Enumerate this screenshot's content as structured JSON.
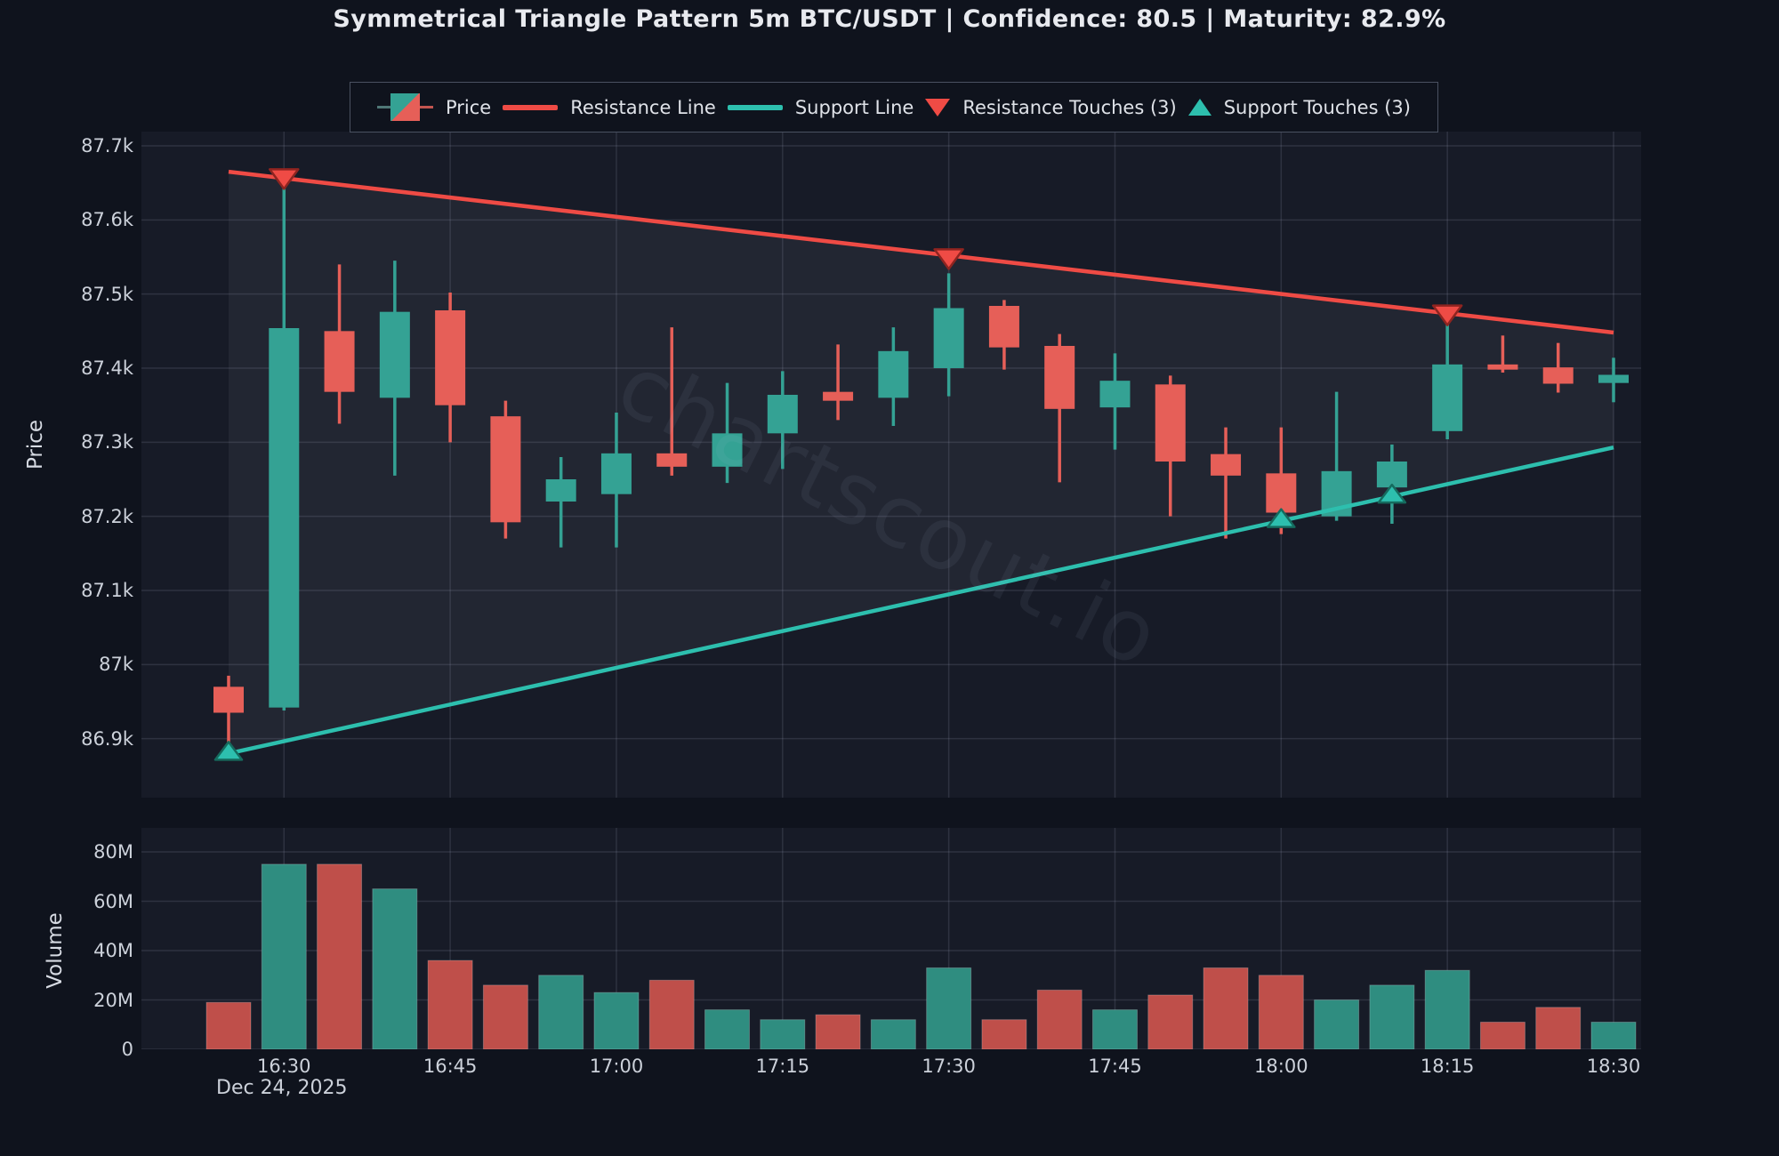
{
  "title": "Symmetrical Triangle Pattern 5m BTC/USDT | Confidence: 80.5 | Maturity: 82.9%",
  "watermark": "chartscout.io",
  "legend": {
    "items": [
      {
        "label": "Price",
        "glyph": "candle-glyph"
      },
      {
        "label": "Resistance Line",
        "glyph": "red-line"
      },
      {
        "label": "Support Line",
        "glyph": "teal-line"
      },
      {
        "label": "Resistance Touches (3)",
        "glyph": "red-down-triangle"
      },
      {
        "label": "Support Touches (3)",
        "glyph": "teal-up-triangle"
      }
    ]
  },
  "axes": {
    "price": {
      "label": "Price",
      "ticks": [
        {
          "value": 87700,
          "label": "87.7k"
        },
        {
          "value": 87600,
          "label": "87.6k"
        },
        {
          "value": 87500,
          "label": "87.5k"
        },
        {
          "value": 87400,
          "label": "87.4k"
        },
        {
          "value": 87300,
          "label": "87.3k"
        },
        {
          "value": 87200,
          "label": "87.2k"
        },
        {
          "value": 87100,
          "label": "87.1k"
        },
        {
          "value": 87000,
          "label": "87k"
        },
        {
          "value": 86900,
          "label": "86.9k"
        }
      ]
    },
    "volume": {
      "label": "Volume",
      "ticks": [
        {
          "value": 0,
          "label": "0"
        },
        {
          "value": 20,
          "label": "20M"
        },
        {
          "value": 40,
          "label": "40M"
        },
        {
          "value": 60,
          "label": "60M"
        },
        {
          "value": 80,
          "label": "80M"
        }
      ]
    },
    "time": {
      "tick_labels": [
        "16:30",
        "16:45",
        "17:00",
        "17:15",
        "17:30",
        "17:45",
        "18:00",
        "18:15",
        "18:30"
      ],
      "date_label": "Dec 24, 2025"
    }
  },
  "chart_data": {
    "type": "candlestick",
    "title": "Symmetrical Triangle Pattern 5m BTC/USDT | Confidence: 80.5 | Maturity: 82.9%",
    "xlabel": "",
    "ylabel_top": "Price",
    "ylabel_bottom": "Volume",
    "price_ylim": [
      86820,
      87715
    ],
    "volume_ylim_m": [
      0,
      90
    ],
    "grid": true,
    "legend_position": "top-center",
    "times": [
      "16:25",
      "16:30",
      "16:35",
      "16:40",
      "16:45",
      "16:50",
      "16:55",
      "17:00",
      "17:05",
      "17:10",
      "17:15",
      "17:20",
      "17:25",
      "17:30",
      "17:35",
      "17:40",
      "17:45",
      "17:50",
      "17:55",
      "18:00",
      "18:05",
      "18:10",
      "18:15",
      "18:20",
      "18:25",
      "18:30"
    ],
    "ohlc": [
      [
        86970,
        86985,
        86885,
        86935
      ],
      [
        86942,
        87660,
        86938,
        87454
      ],
      [
        87450,
        87540,
        87325,
        87368
      ],
      [
        87360,
        87545,
        87255,
        87476
      ],
      [
        87478,
        87502,
        87300,
        87350
      ],
      [
        87335,
        87356,
        87170,
        87192
      ],
      [
        87220,
        87280,
        87158,
        87250
      ],
      [
        87230,
        87340,
        87158,
        87285
      ],
      [
        87285,
        87455,
        87255,
        87267
      ],
      [
        87267,
        87380,
        87245,
        87312
      ],
      [
        87312,
        87396,
        87264,
        87364
      ],
      [
        87368,
        87432,
        87330,
        87356
      ],
      [
        87360,
        87455,
        87322,
        87423
      ],
      [
        87400,
        87528,
        87362,
        87481
      ],
      [
        87484,
        87492,
        87398,
        87428
      ],
      [
        87430,
        87446,
        87246,
        87345
      ],
      [
        87347,
        87420,
        87290,
        87383
      ],
      [
        87378,
        87390,
        87200,
        87274
      ],
      [
        87284,
        87320,
        87170,
        87255
      ],
      [
        87258,
        87320,
        87176,
        87205
      ],
      [
        87200,
        87368,
        87194,
        87261
      ],
      [
        87239,
        87297,
        87190,
        87274
      ],
      [
        87315,
        87464,
        87304,
        87405
      ],
      [
        87405,
        87444,
        87394,
        87398
      ],
      [
        87401,
        87434,
        87367,
        87379
      ],
      [
        87380,
        87414,
        87354,
        87391
      ]
    ],
    "volumes_m": [
      19,
      75,
      75,
      65,
      36,
      26,
      30,
      23,
      28,
      16,
      12,
      14,
      12,
      33,
      12,
      24,
      16,
      22,
      33,
      30,
      20,
      26,
      32,
      11,
      17,
      11
    ],
    "trendlines": {
      "resistance": {
        "start_time": "16:25",
        "end_time": "18:30",
        "start_price": 87665,
        "end_price": 87448
      },
      "support": {
        "start_time": "16:25",
        "end_time": "18:30",
        "start_price": 86880,
        "end_price": 87293
      }
    },
    "touches": {
      "resistance": [
        {
          "time": "16:30",
          "price": 87660
        },
        {
          "time": "17:30",
          "price": 87552
        },
        {
          "time": "18:15",
          "price": 87476
        }
      ],
      "support": [
        {
          "time": "16:25",
          "price": 86880
        },
        {
          "time": "18:00",
          "price": 87194
        },
        {
          "time": "18:10",
          "price": 87227
        }
      ]
    }
  },
  "colors": {
    "background": "#0f131d",
    "panel": "#171b27",
    "pattern_fill": "rgba(255,255,255,0.05)",
    "grid": "rgba(165,176,198,0.16)",
    "candle_up": "#34a294",
    "candle_down": "#e65f58",
    "volume_up": "#2f8d80",
    "volume_down": "#bf4f4a",
    "resistance": "#ef4b45",
    "support": "#2dbfae",
    "resistance_marker_edge": "#8f2420",
    "support_marker_edge": "#156b5e",
    "text": "#dfe2e8"
  }
}
